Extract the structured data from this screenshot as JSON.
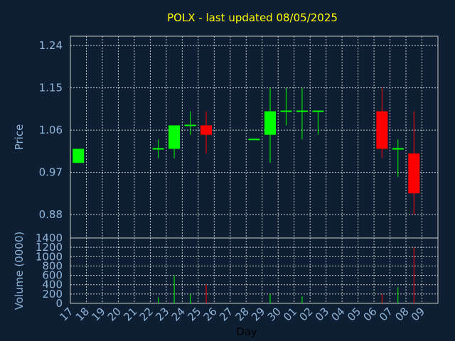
{
  "chart_data": {
    "type": "candlestick",
    "title": "POLX - last updated 08/05/2025",
    "xlabel": "Day",
    "ylabel_price": "Price",
    "ylabel_volume": "Volume (0000)",
    "price_ticks": [
      "1.24",
      "1.15",
      "1.06",
      "0.97",
      "0.88"
    ],
    "price_tick_values": [
      1.24,
      1.15,
      1.06,
      0.97,
      0.88
    ],
    "price_ylim": [
      0.83,
      1.26
    ],
    "volume_ticks": [
      "1400",
      "1200",
      "1000",
      "800",
      "600",
      "400",
      "200",
      "0"
    ],
    "volume_tick_values": [
      1400,
      1200,
      1000,
      800,
      600,
      400,
      200,
      0
    ],
    "volume_ylim": [
      0,
      1400
    ],
    "days": [
      "17",
      "18",
      "19",
      "20",
      "21",
      "22",
      "23",
      "24",
      "25",
      "26",
      "27",
      "28",
      "29",
      "30",
      "01",
      "02",
      "03",
      "04",
      "05",
      "06",
      "07",
      "08",
      "09"
    ],
    "candles": [
      {
        "day": "17",
        "open": 0.99,
        "high": 1.02,
        "low": 0.99,
        "close": 1.02
      },
      {
        "day": "22",
        "open": 1.02,
        "high": 1.04,
        "low": 1.0,
        "close": 1.02
      },
      {
        "day": "23",
        "open": 1.02,
        "high": 1.07,
        "low": 1.0,
        "close": 1.07
      },
      {
        "day": "24",
        "open": 1.07,
        "high": 1.1,
        "low": 1.05,
        "close": 1.07
      },
      {
        "day": "25",
        "open": 1.07,
        "high": 1.1,
        "low": 1.01,
        "close": 1.05
      },
      {
        "day": "28",
        "open": 1.04,
        "high": 1.04,
        "low": 1.04,
        "close": 1.04
      },
      {
        "day": "29",
        "open": 1.05,
        "high": 1.15,
        "low": 0.99,
        "close": 1.1
      },
      {
        "day": "30",
        "open": 1.1,
        "high": 1.15,
        "low": 1.07,
        "close": 1.1
      },
      {
        "day": "01",
        "open": 1.1,
        "high": 1.15,
        "low": 1.04,
        "close": 1.1
      },
      {
        "day": "02",
        "open": 1.1,
        "high": 1.1,
        "low": 1.05,
        "close": 1.1
      },
      {
        "day": "06",
        "open": 1.1,
        "high": 1.15,
        "low": 1.0,
        "close": 1.02
      },
      {
        "day": "07",
        "open": 1.02,
        "high": 1.04,
        "low": 0.96,
        "close": 1.02
      },
      {
        "day": "08",
        "open": 1.01,
        "high": 1.1,
        "low": 0.88,
        "close": 0.925
      }
    ],
    "volumes": [
      {
        "day": "22",
        "value": 130,
        "color": "#00ff00"
      },
      {
        "day": "23",
        "value": 600,
        "color": "#00ff00"
      },
      {
        "day": "24",
        "value": 200,
        "color": "#00ff00"
      },
      {
        "day": "25",
        "value": 400,
        "color": "#ff0000"
      },
      {
        "day": "29",
        "value": 200,
        "color": "#00ff00"
      },
      {
        "day": "01",
        "value": 150,
        "color": "#00ff00"
      },
      {
        "day": "06",
        "value": 200,
        "color": "#ff0000"
      },
      {
        "day": "07",
        "value": 350,
        "color": "#00ff00"
      },
      {
        "day": "08",
        "value": 1200,
        "color": "#ff0000"
      }
    ],
    "grid": true,
    "colors": {
      "background": "#0f1f33",
      "up": "#00ff00",
      "down": "#ff0000",
      "title": "#ffff00",
      "axis_text": "#8fb4d9",
      "grid": "#c8c8c8"
    }
  }
}
